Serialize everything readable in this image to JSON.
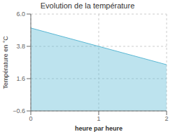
{
  "chart_data": {
    "type": "area",
    "title": "Evolution de la température",
    "xlabel": "heure par heure",
    "ylabel": "Température en °C",
    "x": [
      0,
      2
    ],
    "values": [
      5.05,
      2.55
    ],
    "color": "#5bb8d4",
    "xlim": [
      0,
      2
    ],
    "xticks": [
      0,
      1,
      2
    ],
    "ylim": [
      -0.6,
      6.0
    ],
    "yticks": [
      {
        "value": -0.6,
        "label": "−0.6"
      },
      1.6,
      3.8,
      {
        "value": 6.0,
        "label": "6.0"
      }
    ],
    "grid": true
  }
}
